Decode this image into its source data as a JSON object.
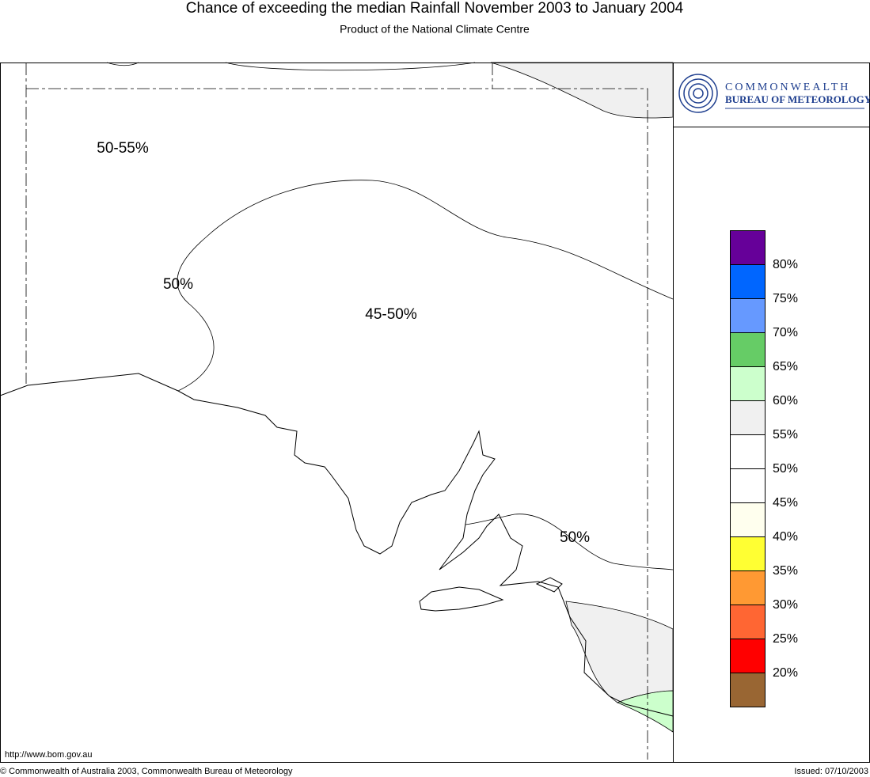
{
  "header": {
    "title": "Chance of exceeding the median Rainfall November 2003 to January 2004",
    "subtitle": "Product of the National Climate Centre"
  },
  "logo": {
    "line1": "COMMONWEALTH",
    "line2": "BUREAU OF METEOROLOGY"
  },
  "map": {
    "labels": [
      "50-55%",
      "50%",
      "45-50%",
      "50%"
    ]
  },
  "legend": {
    "colors": [
      "#660099",
      "#0066ff",
      "#6699ff",
      "#66cc66",
      "#ccffcc",
      "#f0f0f0",
      "#ffffff",
      "#ffffff",
      "#ffffee",
      "#ffff33",
      "#ff9933",
      "#ff6633",
      "#ff0000",
      "#996633"
    ],
    "labels": [
      "80%",
      "75%",
      "70%",
      "65%",
      "60%",
      "55%",
      "50%",
      "45%",
      "40%",
      "35%",
      "30%",
      "25%",
      "20%"
    ]
  },
  "footer": {
    "url": "http://www.bom.gov.au",
    "copyright": "© Commonwealth of Australia 2003, Commonwealth Bureau of Meteorology",
    "issued": "Issued: 07/10/2003"
  }
}
